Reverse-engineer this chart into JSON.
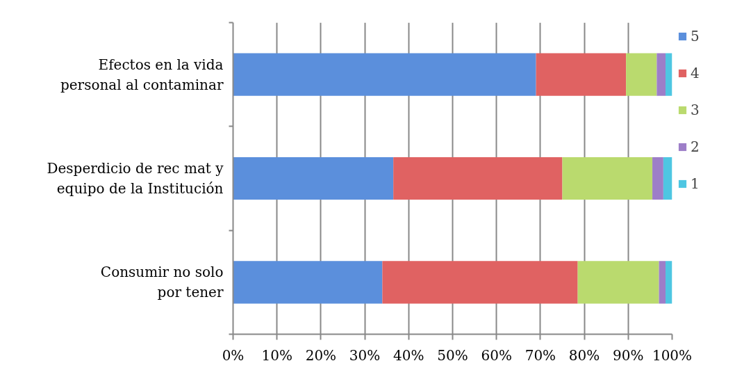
{
  "chart_data": {
    "type": "bar",
    "orientation": "horizontal",
    "stacked": true,
    "categories": [
      "Efectos en la vida\npersonal al contaminar",
      "Desperdicio de rec mat y\nequipo de la Institución",
      "Consumir no solo\npor tener"
    ],
    "series": [
      {
        "name": "5",
        "color": "#5b8fdc",
        "values": [
          69,
          36.5,
          34
        ]
      },
      {
        "name": "4",
        "color": "#e06262",
        "values": [
          20.5,
          38.5,
          44.5
        ]
      },
      {
        "name": "3",
        "color": "#bada6e",
        "values": [
          7,
          20.5,
          18.5
        ]
      },
      {
        "name": "2",
        "color": "#9d7ec8",
        "values": [
          2,
          2.5,
          1.5
        ]
      },
      {
        "name": "1",
        "color": "#4ec6e2",
        "values": [
          1.5,
          2,
          1.5
        ]
      }
    ],
    "xlim": [
      0,
      100
    ],
    "xticks": [
      {
        "value": 0,
        "label": "0%"
      },
      {
        "value": 10,
        "label": "10%"
      },
      {
        "value": 20,
        "label": "20%"
      },
      {
        "value": 30,
        "label": "30%"
      },
      {
        "value": 40,
        "label": "40%"
      },
      {
        "value": 50,
        "label": "50%"
      },
      {
        "value": 60,
        "label": "60%"
      },
      {
        "value": 70,
        "label": "70%"
      },
      {
        "value": 80,
        "label": "80%"
      },
      {
        "value": 90,
        "label": "90%"
      },
      {
        "value": 100,
        "label": "100%"
      }
    ],
    "grid": "x",
    "legend": "right"
  }
}
